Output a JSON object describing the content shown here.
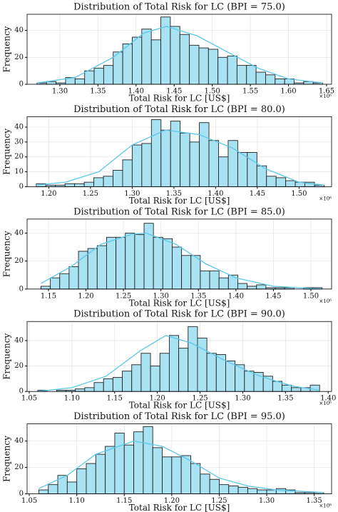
{
  "chart_data": [
    {
      "type": "histogram",
      "title": "Distribution of Total Risk for LC (BPI = 75.0)",
      "x_label": "Total Risk for LC [US$]",
      "y_label": "Frequency",
      "x_offset_label": "×10⁶",
      "color": "#a9e2f3",
      "edge_color": "#222222",
      "grid": true,
      "bins": [
        1.27,
        1.2825,
        1.295,
        1.3075,
        1.32,
        1.3325,
        1.345,
        1.3575,
        1.37,
        1.3825,
        1.395,
        1.4075,
        1.42,
        1.4325,
        1.445,
        1.4575,
        1.47,
        1.4825,
        1.495,
        1.5075,
        1.52,
        1.5325,
        1.545,
        1.5575,
        1.57,
        1.5825,
        1.595,
        1.6075,
        1.62,
        1.6325,
        1.645
      ],
      "counts": [
        1,
        2,
        1,
        5,
        4,
        10,
        12,
        14,
        24,
        30,
        35,
        41,
        33,
        50,
        43,
        37,
        29,
        27,
        26,
        20,
        21,
        14,
        14,
        9,
        7,
        4,
        4,
        1,
        2,
        1
      ],
      "kde": {
        "color": "#5bc8e8",
        "x": [
          1.27,
          1.32,
          1.37,
          1.41,
          1.44,
          1.48,
          1.52,
          1.56,
          1.6,
          1.645
        ],
        "y": [
          1,
          5,
          20,
          38,
          43,
          36,
          24,
          12,
          4,
          1
        ]
      },
      "xlim": [
        1.257,
        1.6566
      ],
      "ylim": [
        0,
        52
      ],
      "xticks": [
        {
          "value": 1.3,
          "label": "1.30"
        },
        {
          "value": 1.35,
          "label": "1.35"
        },
        {
          "value": 1.4,
          "label": "1.40"
        },
        {
          "value": 1.45,
          "label": "1.45"
        },
        {
          "value": 1.5,
          "label": "1.50"
        },
        {
          "value": 1.55,
          "label": "1.55"
        },
        {
          "value": 1.6,
          "label": "1.60"
        },
        {
          "value": 1.65,
          "label": "1.65"
        }
      ],
      "yticks": [
        0,
        20,
        40
      ]
    },
    {
      "type": "histogram",
      "title": "Distribution of Total Risk for LC (BPI = 80.0)",
      "x_label": "Total Risk for LC [US$]",
      "y_label": "Frequency",
      "x_offset_label": "×10⁶",
      "color": "#a9e2f3",
      "edge_color": "#222222",
      "grid": true,
      "bins": [
        1.185,
        1.1965,
        1.208,
        1.2195,
        1.231,
        1.2425,
        1.254,
        1.2655,
        1.277,
        1.2885,
        1.3,
        1.3115,
        1.323,
        1.3345,
        1.346,
        1.3575,
        1.369,
        1.3805,
        1.392,
        1.4035,
        1.415,
        1.4265,
        1.438,
        1.4495,
        1.461,
        1.4725,
        1.484,
        1.4955,
        1.507,
        1.5185,
        1.53
      ],
      "counts": [
        2,
        1,
        1,
        2,
        2,
        3,
        6,
        7,
        11,
        18,
        28,
        29,
        45,
        38,
        44,
        36,
        30,
        43,
        31,
        20,
        31,
        23,
        23,
        14,
        7,
        6,
        4,
        3,
        3,
        1
      ],
      "kde": {
        "color": "#5bc8e8",
        "x": [
          1.185,
          1.22,
          1.26,
          1.3,
          1.34,
          1.38,
          1.42,
          1.46,
          1.5,
          1.53
        ],
        "y": [
          1,
          3,
          10,
          28,
          38,
          35,
          26,
          12,
          3,
          1
        ]
      },
      "xlim": [
        1.174,
        1.539
      ],
      "ylim": [
        0,
        47
      ],
      "xticks": [
        {
          "value": 1.2,
          "label": "1.20"
        },
        {
          "value": 1.25,
          "label": "1.25"
        },
        {
          "value": 1.3,
          "label": "1.30"
        },
        {
          "value": 1.35,
          "label": "1.35"
        },
        {
          "value": 1.4,
          "label": "1.40"
        },
        {
          "value": 1.45,
          "label": "1.45"
        },
        {
          "value": 1.5,
          "label": "1.50"
        }
      ],
      "yticks": [
        0,
        10,
        20,
        30,
        40
      ]
    },
    {
      "type": "histogram",
      "title": "Distribution of Total Risk for LC (BPI = 85.0)",
      "x_label": "Total Risk for LC [US$]",
      "y_label": "Frequency",
      "x_offset_label": "×10⁶",
      "color": "#a9e2f3",
      "edge_color": "#222222",
      "grid": true,
      "bins": [
        1.14,
        1.1525,
        1.165,
        1.1775,
        1.19,
        1.2025,
        1.215,
        1.2275,
        1.24,
        1.2525,
        1.265,
        1.2775,
        1.29,
        1.3025,
        1.315,
        1.3275,
        1.34,
        1.3525,
        1.365,
        1.3775,
        1.39,
        1.4025,
        1.415,
        1.4275,
        1.44,
        1.4525,
        1.465,
        1.4775,
        1.49,
        1.5025,
        1.515
      ],
      "counts": [
        2,
        8,
        11,
        16,
        27,
        29,
        31,
        37,
        37,
        40,
        39,
        47,
        37,
        36,
        30,
        24,
        24,
        13,
        13,
        8,
        10,
        4,
        2,
        3,
        1,
        1,
        1,
        0,
        1,
        1
      ],
      "kde": {
        "color": "#5bc8e8",
        "x": [
          1.14,
          1.18,
          1.22,
          1.26,
          1.28,
          1.32,
          1.36,
          1.4,
          1.45,
          1.515
        ],
        "y": [
          4,
          16,
          32,
          39,
          40,
          32,
          18,
          8,
          2,
          0
        ]
      },
      "xlim": [
        1.1215,
        1.5276
      ],
      "ylim": [
        0,
        50
      ],
      "xticks": [
        {
          "value": 1.15,
          "label": "1.15"
        },
        {
          "value": 1.2,
          "label": "1.20"
        },
        {
          "value": 1.25,
          "label": "1.25"
        },
        {
          "value": 1.3,
          "label": "1.30"
        },
        {
          "value": 1.35,
          "label": "1.35"
        },
        {
          "value": 1.4,
          "label": "1.40"
        },
        {
          "value": 1.45,
          "label": "1.45"
        },
        {
          "value": 1.5,
          "label": "1.50"
        }
      ],
      "yticks": [
        0,
        20,
        40
      ]
    },
    {
      "type": "histogram",
      "title": "Distribution of Total Risk for LC (BPI = 90.0)",
      "x_label": "Total Risk for LC [US$]",
      "y_label": "Frequency",
      "x_offset_label": "×10⁶",
      "color": "#a9e2f3",
      "edge_color": "#222222",
      "grid": true,
      "bins": [
        1.06,
        1.071,
        1.082,
        1.093,
        1.104,
        1.115,
        1.126,
        1.137,
        1.148,
        1.159,
        1.17,
        1.181,
        1.192,
        1.203,
        1.214,
        1.225,
        1.236,
        1.247,
        1.258,
        1.269,
        1.28,
        1.291,
        1.302,
        1.313,
        1.324,
        1.335,
        1.346,
        1.357,
        1.368,
        1.379,
        1.39
      ],
      "counts": [
        1,
        0,
        1,
        1,
        2,
        3,
        7,
        10,
        11,
        16,
        21,
        30,
        20,
        30,
        44,
        34,
        51,
        42,
        30,
        29,
        24,
        21,
        16,
        15,
        12,
        8,
        5,
        3,
        3,
        5
      ],
      "kde": {
        "color": "#5bc8e8",
        "x": [
          1.06,
          1.1,
          1.14,
          1.18,
          1.21,
          1.24,
          1.28,
          1.32,
          1.36,
          1.39
        ],
        "y": [
          0,
          3,
          12,
          32,
          44,
          38,
          24,
          12,
          4,
          1
        ]
      },
      "xlim": [
        1.0475,
        1.404
      ],
      "ylim": [
        0,
        55
      ],
      "xticks": [
        {
          "value": 1.05,
          "label": "1.05"
        },
        {
          "value": 1.1,
          "label": "1.10"
        },
        {
          "value": 1.15,
          "label": "1.15"
        },
        {
          "value": 1.2,
          "label": "1.20"
        },
        {
          "value": 1.25,
          "label": "1.25"
        },
        {
          "value": 1.3,
          "label": "1.30"
        },
        {
          "value": 1.35,
          "label": "1.35"
        },
        {
          "value": 1.4,
          "label": "1.40"
        }
      ],
      "yticks": [
        0,
        20,
        40
      ]
    },
    {
      "type": "histogram",
      "title": "Distribution of Total Risk for LC (BPI = 95.0)",
      "x_label": "Total Risk for LC [US$]",
      "y_label": "Frequency",
      "x_offset_label": "×10⁶",
      "color": "#a9e2f3",
      "edge_color": "#222222",
      "grid": true,
      "bins": [
        1.06,
        1.07,
        1.08,
        1.09,
        1.1,
        1.11,
        1.12,
        1.13,
        1.14,
        1.15,
        1.16,
        1.17,
        1.18,
        1.19,
        1.2,
        1.21,
        1.22,
        1.23,
        1.24,
        1.25,
        1.26,
        1.27,
        1.28,
        1.29,
        1.3,
        1.31,
        1.32,
        1.33,
        1.34,
        1.35,
        1.36
      ],
      "counts": [
        3,
        7,
        14,
        9,
        19,
        23,
        30,
        36,
        46,
        37,
        47,
        51,
        35,
        28,
        28,
        29,
        23,
        15,
        11,
        7,
        6,
        5,
        4,
        3,
        3,
        4,
        3,
        1,
        1,
        1
      ],
      "kde": {
        "color": "#5bc8e8",
        "x": [
          1.06,
          1.09,
          1.12,
          1.16,
          1.19,
          1.22,
          1.25,
          1.28,
          1.31,
          1.36
        ],
        "y": [
          4,
          14,
          30,
          40,
          36,
          25,
          12,
          6,
          3,
          1
        ]
      },
      "xlim": [
        1.0477,
        1.3683
      ],
      "ylim": [
        0,
        53
      ],
      "xticks": [
        {
          "value": 1.05,
          "label": "1.05"
        },
        {
          "value": 1.1,
          "label": "1.10"
        },
        {
          "value": 1.15,
          "label": "1.15"
        },
        {
          "value": 1.2,
          "label": "1.20"
        },
        {
          "value": 1.25,
          "label": "1.25"
        },
        {
          "value": 1.3,
          "label": "1.30"
        },
        {
          "value": 1.35,
          "label": "1.35"
        }
      ],
      "yticks": [
        0,
        20,
        40
      ]
    }
  ]
}
